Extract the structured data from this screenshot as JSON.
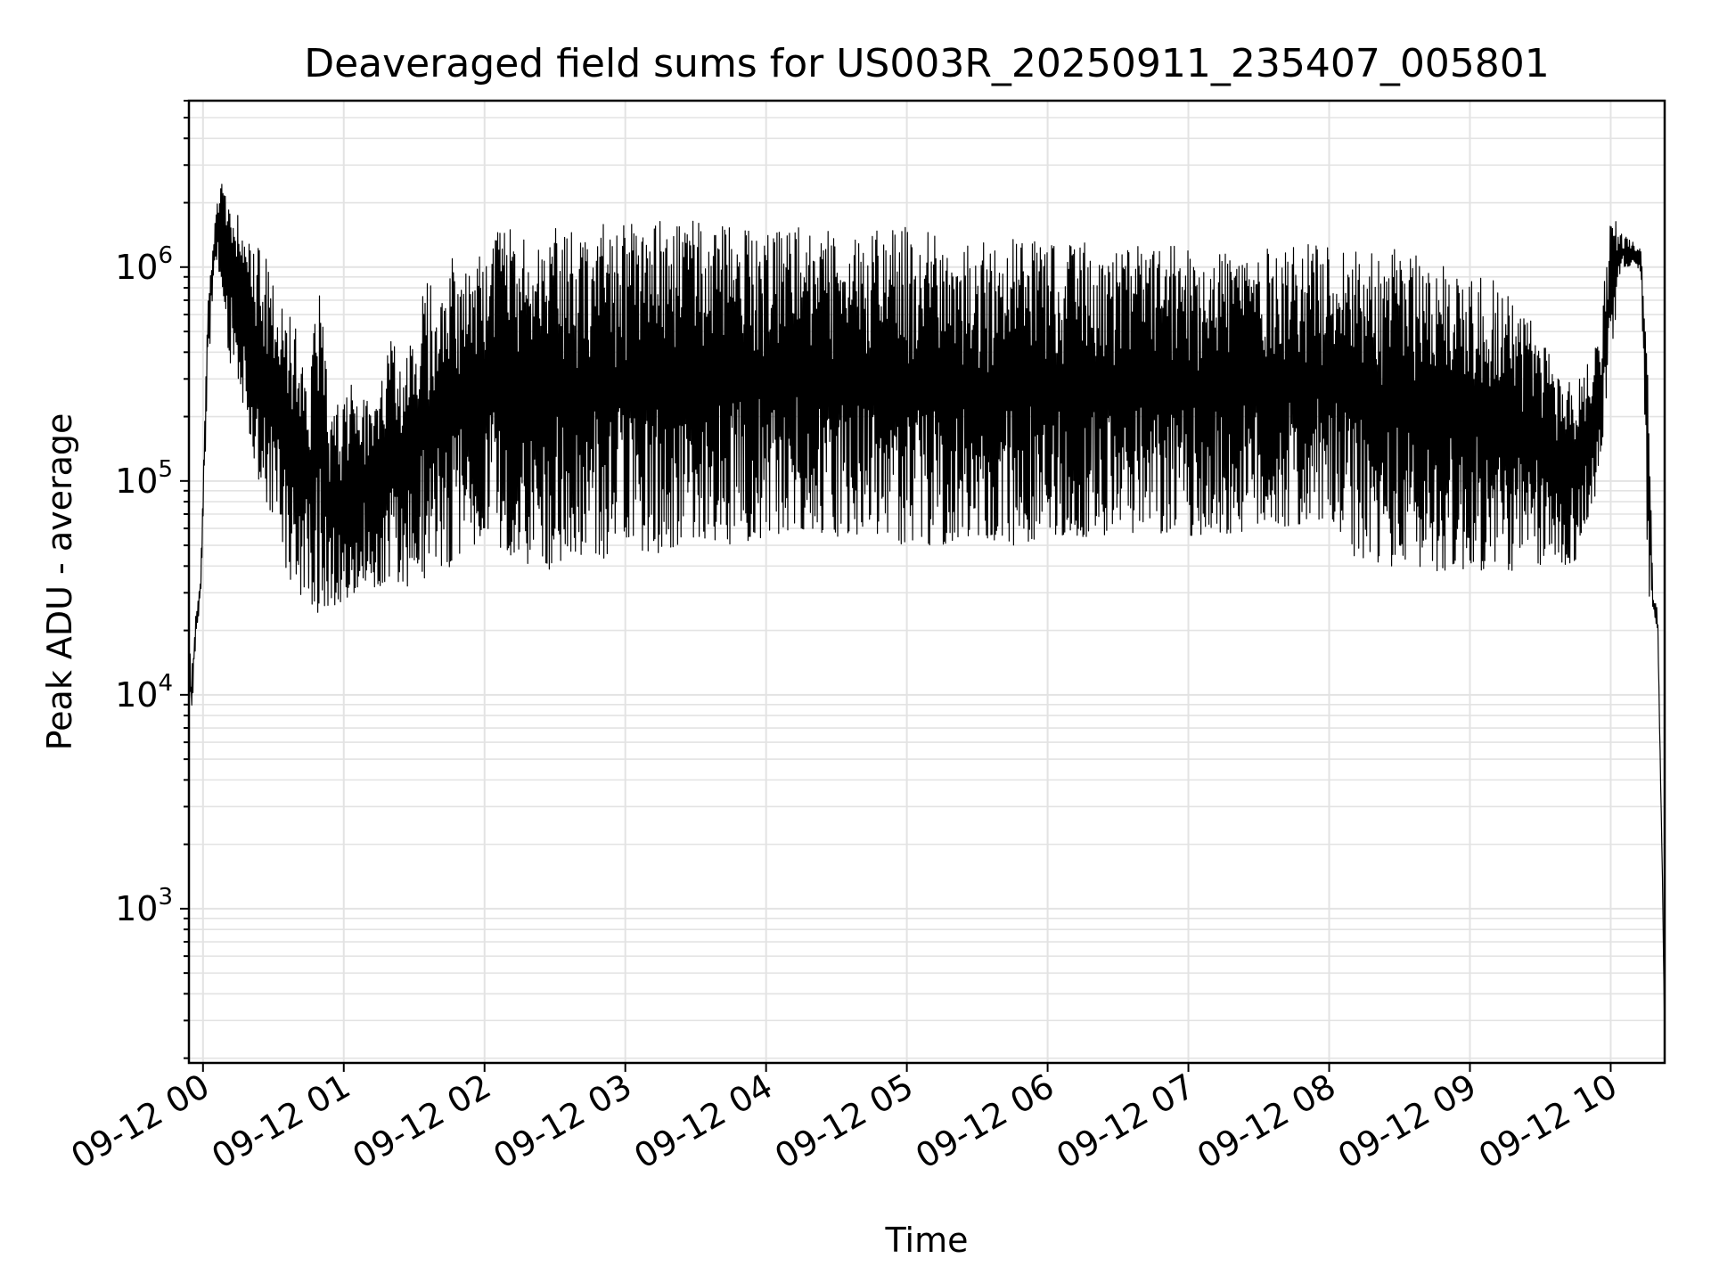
{
  "chart_data": {
    "type": "line",
    "title": "Deaveraged field sums for US003R_20250911_235407_005801",
    "xlabel": "Time",
    "ylabel": "Peak ADU - average",
    "y_scale": "log",
    "ylim": [
      190,
      6000000
    ],
    "xlim": [
      "2025-09-11 23:54",
      "2025-09-12 10:23"
    ],
    "x_ticks": [
      "09-12 00",
      "09-12 01",
      "09-12 02",
      "09-12 03",
      "09-12 04",
      "09-12 05",
      "09-12 06",
      "09-12 07",
      "09-12 08",
      "09-12 09",
      "09-12 10"
    ],
    "y_ticks": [
      {
        "value": 1000,
        "base": "10",
        "exp": "3"
      },
      {
        "value": 10000,
        "base": "10",
        "exp": "4"
      },
      {
        "value": 100000,
        "base": "10",
        "exp": "5"
      },
      {
        "value": 1000000,
        "base": "10",
        "exp": "6"
      }
    ],
    "grid": true,
    "legend": "none",
    "series": [
      {
        "color": "#000000",
        "note_style": "dense rapidly oscillating signal; envelope points below",
        "x": [
          "2025-09-11 23:54",
          "2025-09-11 23:55",
          "2025-09-11 23:57",
          "2025-09-11 23:59",
          "2025-09-12 00:02",
          "2025-09-12 00:05",
          "2025-09-12 00:08",
          "2025-09-12 00:10",
          "2025-09-12 00:14",
          "2025-09-12 00:18",
          "2025-09-12 00:22",
          "2025-09-12 00:26",
          "2025-09-12 00:30",
          "2025-09-12 00:35",
          "2025-09-12 00:40",
          "2025-09-12 00:45",
          "2025-09-12 00:50",
          "2025-09-12 00:55",
          "2025-09-12 01:00",
          "2025-09-12 01:05",
          "2025-09-12 01:10",
          "2025-09-12 01:15",
          "2025-09-12 01:20",
          "2025-09-12 01:25",
          "2025-09-12 01:30",
          "2025-09-12 01:35",
          "2025-09-12 01:40",
          "2025-09-12 01:45",
          "2025-09-12 01:50",
          "2025-09-12 01:55",
          "2025-09-12 02:00",
          "2025-09-12 02:10",
          "2025-09-12 02:20",
          "2025-09-12 02:30",
          "2025-09-12 02:40",
          "2025-09-12 02:50",
          "2025-09-12 03:00",
          "2025-09-12 03:15",
          "2025-09-12 03:30",
          "2025-09-12 03:45",
          "2025-09-12 04:00",
          "2025-09-12 04:15",
          "2025-09-12 04:30",
          "2025-09-12 04:45",
          "2025-09-12 05:00",
          "2025-09-12 05:15",
          "2025-09-12 05:30",
          "2025-09-12 05:45",
          "2025-09-12 06:00",
          "2025-09-12 06:15",
          "2025-09-12 06:30",
          "2025-09-12 06:45",
          "2025-09-12 07:00",
          "2025-09-12 07:15",
          "2025-09-12 07:30",
          "2025-09-12 07:45",
          "2025-09-12 08:00",
          "2025-09-12 08:10",
          "2025-09-12 08:20",
          "2025-09-12 08:30",
          "2025-09-12 08:40",
          "2025-09-12 08:50",
          "2025-09-12 09:00",
          "2025-09-12 09:10",
          "2025-09-12 09:20",
          "2025-09-12 09:30",
          "2025-09-12 09:40",
          "2025-09-12 09:45",
          "2025-09-12 09:50",
          "2025-09-12 09:55",
          "2025-09-12 10:00",
          "2025-09-12 10:03",
          "2025-09-12 10:06",
          "2025-09-12 10:10",
          "2025-09-12 10:13",
          "2025-09-12 10:16",
          "2025-09-12 10:18",
          "2025-09-12 10:20",
          "2025-09-12 10:22",
          "2025-09-12 10:23"
        ],
        "high": [
          25000,
          12000,
          25000,
          35000,
          800000,
          1600000,
          3500000,
          2000000,
          1800000,
          1600000,
          1400000,
          1200000,
          900000,
          700000,
          500000,
          300000,
          900000,
          200000,
          300000,
          300000,
          250000,
          250000,
          500000,
          300000,
          600000,
          1000000,
          800000,
          1100000,
          1100000,
          900000,
          1500000,
          1500000,
          1500000,
          1550000,
          1550000,
          1600000,
          1600000,
          1650000,
          1650000,
          1600000,
          1650000,
          1600000,
          1500000,
          1500000,
          1550000,
          1400000,
          1300000,
          1350000,
          1300000,
          1300000,
          1250000,
          1250000,
          1250000,
          1250000,
          1200000,
          1300000,
          1250000,
          1300000,
          1250000,
          1200000,
          1150000,
          1000000,
          1000000,
          900000,
          700000,
          500000,
          300000,
          300000,
          350000,
          500000,
          1800000,
          1600000,
          1400000,
          1300000,
          1200000,
          300000,
          30000,
          25000,
          1500,
          250
        ],
        "low": [
          9000,
          7500,
          18000,
          28000,
          300000,
          1000000,
          800000,
          400000,
          300000,
          200000,
          120000,
          80000,
          60000,
          35000,
          30000,
          28000,
          22000,
          25000,
          28000,
          30000,
          35000,
          30000,
          35000,
          30000,
          35000,
          35000,
          40000,
          38000,
          45000,
          50000,
          55000,
          45000,
          40000,
          38000,
          40000,
          42000,
          45000,
          45000,
          50000,
          50000,
          55000,
          60000,
          55000,
          55000,
          50000,
          50000,
          55000,
          50000,
          55000,
          55000,
          55000,
          55000,
          55000,
          55000,
          60000,
          60000,
          65000,
          45000,
          40000,
          40000,
          38000,
          38000,
          38000,
          38000,
          38000,
          40000,
          40000,
          42000,
          60000,
          100000,
          300000,
          800000,
          1000000,
          1000000,
          900000,
          30000,
          25000,
          20000,
          1500,
          250
        ]
      }
    ]
  }
}
